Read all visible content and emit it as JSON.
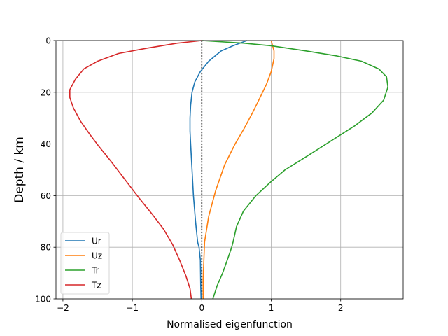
{
  "chart_data": {
    "type": "line",
    "xlabel": "Normalised eigenfunction",
    "ylabel": "Depth / km",
    "xlim": [
      -2.1,
      2.9
    ],
    "ylim": [
      100,
      0
    ],
    "xticks": [
      -2,
      -1,
      0,
      1,
      2
    ],
    "xtick_labels": [
      "−2",
      "−1",
      "0",
      "1",
      "2"
    ],
    "yticks": [
      0,
      20,
      40,
      60,
      80,
      100
    ],
    "ytick_labels": [
      "0",
      "20",
      "40",
      "60",
      "80",
      "100"
    ],
    "grid": true,
    "legend_position": "lower-left",
    "reference_line": {
      "x": 0,
      "style": "dotted",
      "color": "#000000"
    },
    "series": [
      {
        "name": "Ur",
        "color": "#1f77b4",
        "x": [
          0.65,
          0.45,
          0.28,
          0.1,
          -0.02,
          -0.1,
          -0.14,
          -0.16,
          -0.17,
          -0.17,
          -0.16,
          -0.14,
          -0.12,
          -0.09,
          -0.06,
          -0.04,
          -0.02,
          -0.015,
          -0.01
        ],
        "y": [
          0,
          2,
          4,
          8,
          12,
          16,
          20,
          25,
          30,
          35,
          40,
          50,
          60,
          70,
          78,
          80,
          85,
          95,
          100
        ]
      },
      {
        "name": "Uz",
        "color": "#ff7f0e",
        "x": [
          1.0,
          1.02,
          1.04,
          1.04,
          1.0,
          0.93,
          0.84,
          0.73,
          0.61,
          0.48,
          0.33,
          0.2,
          0.1,
          0.04,
          0.03,
          0.02,
          0.02
        ],
        "y": [
          0,
          2,
          4,
          7,
          12,
          17,
          22,
          28,
          34,
          40,
          48,
          58,
          68,
          78,
          85,
          92,
          100
        ]
      },
      {
        "name": "Tr",
        "color": "#2ca02c",
        "x": [
          0.0,
          0.6,
          1.0,
          1.5,
          1.95,
          2.3,
          2.55,
          2.66,
          2.68,
          2.62,
          2.45,
          2.2,
          1.85,
          1.5,
          1.2,
          0.98,
          0.78,
          0.6,
          0.5,
          0.45,
          0.43,
          0.38,
          0.3,
          0.22,
          0.16
        ],
        "y": [
          0,
          1,
          2,
          4,
          6,
          8,
          11,
          14,
          18,
          23,
          28,
          33,
          39,
          45,
          50,
          55,
          60,
          66,
          72,
          78,
          80,
          84,
          90,
          95,
          100
        ]
      },
      {
        "name": "Tz",
        "color": "#d62728",
        "x": [
          0.0,
          -0.35,
          -0.8,
          -1.2,
          -1.5,
          -1.7,
          -1.82,
          -1.9,
          -1.9,
          -1.85,
          -1.75,
          -1.62,
          -1.48,
          -1.3,
          -1.1,
          -0.9,
          -0.72,
          -0.55,
          -0.42,
          -0.32,
          -0.23,
          -0.17,
          -0.15
        ],
        "y": [
          0,
          1,
          3,
          5,
          8,
          11,
          15,
          19,
          22,
          26,
          31,
          36,
          41,
          47,
          54,
          61,
          67,
          73,
          79,
          85,
          91,
          96,
          100
        ]
      }
    ]
  }
}
